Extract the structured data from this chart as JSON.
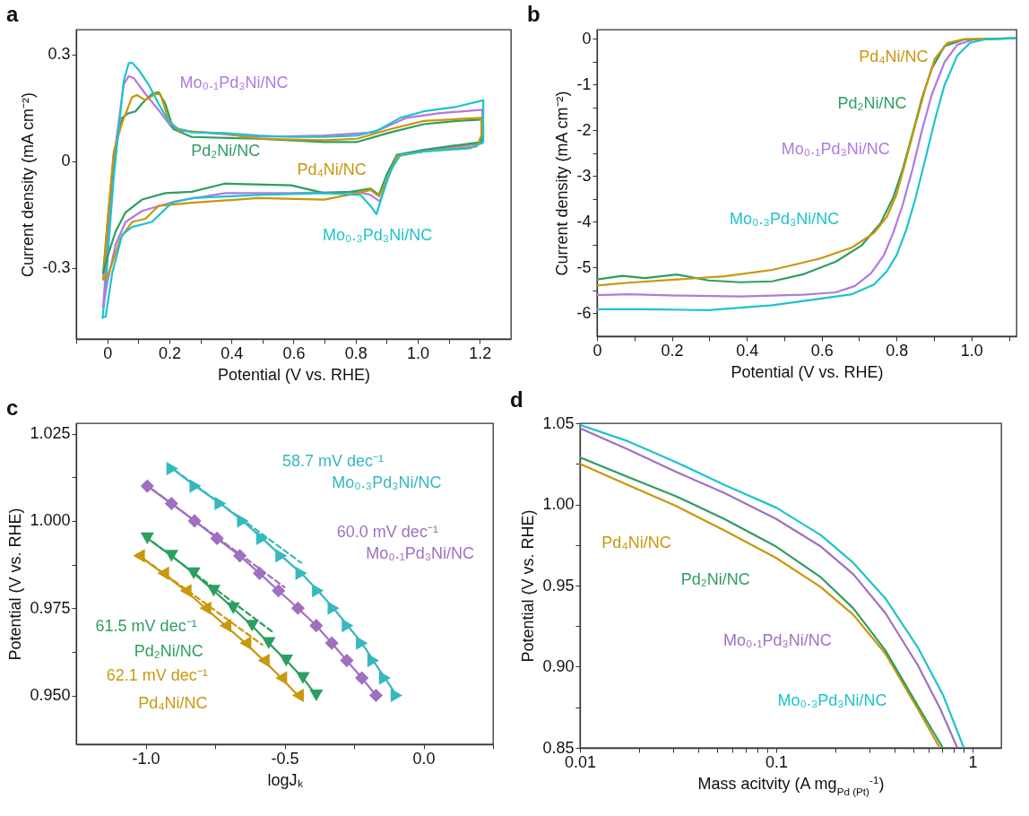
{
  "chart_data": [
    {
      "type": "line",
      "title": "a",
      "xlabel": "Potential (V vs. RHE)",
      "ylabel": "Current density  (mA cm⁻²)",
      "xlim": [
        -0.1,
        1.3
      ],
      "ylim": [
        -0.5,
        0.37
      ],
      "xticks": [
        0,
        {
          "value": 0.1,
          "label": null
        },
        0.2,
        {
          "value": 0.3,
          "label": null
        },
        0.4,
        {
          "value": 0.5,
          "label": null
        },
        0.6,
        {
          "value": 0.7,
          "label": null
        },
        0.8,
        {
          "value": 0.9,
          "label": null
        },
        {
          "value": 1,
          "label": "1.0"
        },
        {
          "value": 1.1,
          "label": null
        },
        1.2,
        {
          "value": -0.1,
          "label": null
        }
      ],
      "yticks": [
        -0.3,
        0,
        0.3
      ],
      "series": [
        {
          "name": "Mo₀.₁Pd₃Ni/NC",
          "color": "#b07ae0",
          "x": [
            -0.013,
            0.005,
            0.027,
            0.053,
            0.069,
            0.085,
            0.123,
            0.165,
            0.208,
            0.272,
            0.485,
            0.699,
            0.859,
            0.965,
            1.072,
            1.2,
            1.208
          ],
          "values": [
            -0.41,
            -0.18,
            0.045,
            0.216,
            0.239,
            0.234,
            0.189,
            0.144,
            0.095,
            0.083,
            0.068,
            0.072,
            0.081,
            0.122,
            0.135,
            0.144,
            0.144
          ]
        },
        {
          "name": "Pd₂Ni/NC",
          "color": "#2e9e60",
          "x": [
            -0.013,
            0,
            0.021,
            0.048,
            0.069,
            0.091,
            0.112,
            0.144,
            0.165,
            0.187,
            0.213,
            0.272,
            0.485,
            0.699,
            0.805,
            0.912,
            1.019,
            1.125,
            1.205
          ],
          "values": [
            -0.315,
            -0.18,
            0.018,
            0.122,
            0.135,
            0.14,
            0.162,
            0.189,
            0.194,
            0.162,
            0.09,
            0.068,
            0.063,
            0.054,
            0.054,
            0.081,
            0.104,
            0.113,
            0.117
          ]
        },
        {
          "name": "Pd₄Ni/NC",
          "color": "#c9960c",
          "x": [
            -0.013,
            0,
            0.021,
            0.048,
            0.08,
            0.096,
            0.123,
            0.155,
            0.171,
            0.197,
            0.229,
            0.379,
            0.485,
            0.699,
            0.805,
            0.912,
            1.019,
            1.205
          ],
          "values": [
            -0.333,
            -0.18,
            0.027,
            0.108,
            0.18,
            0.186,
            0.171,
            0.189,
            0.189,
            0.117,
            0.086,
            0.077,
            0.063,
            0.059,
            0.063,
            0.09,
            0.113,
            0.122
          ]
        },
        {
          "name": "Mo₀.₃Pd₃Ni/NC",
          "color": "#1ec3cc",
          "x": [
            -0.015,
            -0.005,
            0.005,
            0.021,
            0.037,
            0.053,
            0.069,
            0.08,
            0.101,
            0.133,
            0.165,
            0.197,
            0.229,
            0.272,
            0.379,
            0.485,
            0.592,
            0.699,
            0.805,
            0.869,
            0.944,
            1.019,
            1.125,
            1.211
          ],
          "values": [
            -0.44,
            -0.36,
            -0.225,
            -0.045,
            0.09,
            0.225,
            0.275,
            0.277,
            0.257,
            0.216,
            0.162,
            0.113,
            0.09,
            0.081,
            0.079,
            0.072,
            0.068,
            0.068,
            0.072,
            0.086,
            0.122,
            0.14,
            0.153,
            0.171
          ]
        },
        {
          "color": "#b07ae0",
          "x": [
            1.208,
            1.208,
            1.019,
            0.933,
            0.901,
            0.878,
            0.848,
            0.805,
            0.592,
            0.379,
            0.219,
            0.112,
            0.059,
            0.027,
            0,
            -0.013
          ],
          "values": [
            0.144,
            0.05,
            0.029,
            0.014,
            -0.054,
            -0.113,
            -0.095,
            -0.086,
            -0.09,
            -0.09,
            -0.113,
            -0.14,
            -0.171,
            -0.234,
            -0.342,
            -0.41
          ]
        },
        {
          "color": "#2e9e60",
          "x": [
            1.205,
            1.205,
            1.019,
            0.933,
            0.901,
            0.875,
            0.848,
            0.784,
            0.699,
            0.592,
            0.379,
            0.272,
            0.187,
            0.112,
            0.059,
            0.027,
            0,
            -0.013
          ],
          "values": [
            0.117,
            0.054,
            0.032,
            0.018,
            -0.036,
            -0.095,
            -0.077,
            -0.086,
            -0.09,
            -0.068,
            -0.063,
            -0.086,
            -0.09,
            -0.108,
            -0.144,
            -0.198,
            -0.27,
            -0.315
          ]
        },
        {
          "color": "#c9960c",
          "x": [
            1.205,
            1.205,
            1.189,
            1.019,
            0.933,
            0.901,
            0.875,
            0.848,
            0.805,
            0.699,
            0.485,
            0.272,
            0.165,
            0.123,
            0.08,
            0.043,
            0.005,
            -0.013
          ],
          "values": [
            0.122,
            0.072,
            0.041,
            0.027,
            0.014,
            -0.054,
            -0.099,
            -0.081,
            -0.09,
            -0.108,
            -0.104,
            -0.117,
            -0.126,
            -0.162,
            -0.171,
            -0.216,
            -0.315,
            -0.333
          ]
        },
        {
          "color": "#1ec3cc",
          "x": [
            1.211,
            1.211,
            1.168,
            1.019,
            0.944,
            0.912,
            0.885,
            0.867,
            0.848,
            0.816,
            0.699,
            0.485,
            0.272,
            0.208,
            0.144,
            0.08,
            0.048,
            0.016,
            -0.005,
            -0.015
          ],
          "values": [
            0.171,
            0.054,
            0.036,
            0.027,
            0.018,
            -0.027,
            -0.099,
            -0.149,
            -0.126,
            -0.095,
            -0.09,
            -0.095,
            -0.104,
            -0.117,
            -0.171,
            -0.185,
            -0.207,
            -0.315,
            -0.437,
            -0.44
          ]
        }
      ]
    },
    {
      "type": "line",
      "title": "b",
      "xlabel": "Potential (V vs. RHE)",
      "ylabel": "Current density (mA cm⁻²)",
      "xlim": [
        0,
        1.12
      ],
      "ylim": [
        -6.5,
        0.2
      ],
      "xticks": [
        0,
        {
          "value": 0.1,
          "label": null
        },
        0.2,
        {
          "value": 0.3,
          "label": null
        },
        0.4,
        {
          "value": 0.5,
          "label": null
        },
        0.6,
        {
          "value": 0.7,
          "label": null
        },
        0.8,
        {
          "value": 0.9,
          "label": null
        },
        {
          "value": 1,
          "label": "1.0"
        },
        {
          "value": 1.1,
          "label": null
        }
      ],
      "yticks": [
        -6,
        {
          "value": -5.5,
          "label": null
        },
        -5,
        {
          "value": -4.5,
          "label": null
        },
        -4,
        {
          "value": -3.5,
          "label": null
        },
        -3,
        {
          "value": -2.5,
          "label": null
        },
        -2,
        {
          "value": -1.5,
          "label": null
        },
        -1,
        {
          "value": -0.5,
          "label": null
        },
        0
      ],
      "series": [
        {
          "name": "Mo₀.₁Pd₃Ni/NC",
          "color": "#b07ae0",
          "x": [
            0,
            0.085,
            0.213,
            0.383,
            0.553,
            0.638,
            0.689,
            0.732,
            0.766,
            0.791,
            0.817,
            0.843,
            0.868,
            0.894,
            0.928,
            0.962,
            1.004,
            1.119
          ],
          "values": [
            -5.6,
            -5.58,
            -5.61,
            -5.63,
            -5.59,
            -5.54,
            -5.4,
            -5.12,
            -4.73,
            -4.24,
            -3.61,
            -2.83,
            -1.99,
            -1.22,
            -0.51,
            -0.13,
            -0.02,
            0.01
          ]
        },
        {
          "name": "Pd₂Ni/NC",
          "color": "#2e9e60",
          "x": [
            0,
            0.068,
            0.128,
            0.213,
            0.298,
            0.383,
            0.468,
            0.553,
            0.638,
            0.706,
            0.757,
            0.791,
            0.817,
            0.843,
            0.868,
            0.894,
            0.928,
            0.979,
            1.119
          ],
          "values": [
            -5.26,
            -5.18,
            -5.23,
            -5.15,
            -5.28,
            -5.32,
            -5.3,
            -5.14,
            -4.87,
            -4.52,
            -4.03,
            -3.47,
            -2.83,
            -2.06,
            -1.29,
            -0.65,
            -0.16,
            -0.02,
            0.01
          ]
        },
        {
          "name": "Pd₄Ni/NC",
          "color": "#c9960c",
          "x": [
            0,
            0.085,
            0.213,
            0.34,
            0.468,
            0.596,
            0.681,
            0.74,
            0.774,
            0.8,
            0.826,
            0.851,
            0.877,
            0.902,
            0.936,
            0.979,
            1.119
          ],
          "values": [
            -5.39,
            -5.33,
            -5.26,
            -5.19,
            -5.05,
            -4.8,
            -4.56,
            -4.24,
            -3.89,
            -3.4,
            -2.62,
            -1.85,
            -1.08,
            -0.44,
            -0.09,
            -0.01,
            0.01
          ]
        },
        {
          "name": "Mo₀.₃Pd₃Ni/NC",
          "color": "#1ec3cc",
          "x": [
            0,
            0.128,
            0.298,
            0.468,
            0.596,
            0.681,
            0.74,
            0.774,
            0.8,
            0.826,
            0.851,
            0.877,
            0.902,
            0.928,
            0.962,
            0.996,
            1.038,
            1.119
          ],
          "values": [
            -5.91,
            -5.91,
            -5.93,
            -5.82,
            -5.68,
            -5.58,
            -5.37,
            -5.08,
            -4.73,
            -4.17,
            -3.47,
            -2.62,
            -1.78,
            -1.01,
            -0.37,
            -0.09,
            -0.01,
            0.01
          ]
        }
      ]
    },
    {
      "type": "line",
      "title": "c",
      "xlabel": "logJₖ",
      "ylabel": "Potential (V vs. RHE)",
      "xlim": [
        -1.25,
        0.25
      ],
      "ylim": [
        0.936,
        1.028
      ],
      "xticks": [
        {
          "value": -1,
          "label": "-1.0"
        },
        {
          "value": -0.75,
          "label": null
        },
        -0.5,
        {
          "value": -0.25,
          "label": null
        },
        {
          "value": 0,
          "label": "0.0"
        },
        {
          "value": 0.25,
          "label": null
        }
      ],
      "yticks": [
        {
          "value": 0.95,
          "label": "0.950"
        },
        {
          "value": 0.9625,
          "label": null
        },
        0.975,
        {
          "value": 0.9875,
          "label": null
        },
        {
          "value": 1,
          "label": "1.000"
        },
        {
          "value": 1.0125,
          "label": null
        },
        1.025
      ],
      "annotations": [
        "58.7 mV dec⁻¹",
        "60.0 mV dec⁻¹",
        "61.5 mV dec⁻¹",
        "62.1 mV dec⁻¹"
      ],
      "series": [
        {
          "name": "Mo₀.₃Pd₃Ni/NC",
          "color": "#36b8bf",
          "marker": "triangle-right",
          "x": [
            -0.904,
            -0.821,
            -0.731,
            -0.65,
            -0.581,
            -0.512,
            -0.44,
            -0.38,
            -0.324,
            -0.273,
            -0.222,
            -0.181,
            -0.139,
            -0.097
          ],
          "values": [
            1.015,
            1.01,
            1.005,
            1,
            0.995,
            0.99,
            0.985,
            0.98,
            0.975,
            0.97,
            0.965,
            0.96,
            0.955,
            0.95
          ]
        },
        {
          "name": "Mo₀.₁Pd₃Ni/NC",
          "color": "#a070c0",
          "marker": "diamond",
          "x": [
            -0.994,
            -0.907,
            -0.824,
            -0.743,
            -0.661,
            -0.59,
            -0.522,
            -0.452,
            -0.386,
            -0.33,
            -0.276,
            -0.222,
            -0.171
          ],
          "values": [
            1.01,
            1.005,
            1,
            0.995,
            0.99,
            0.985,
            0.98,
            0.975,
            0.97,
            0.965,
            0.96,
            0.955,
            0.95
          ]
        },
        {
          "name": "Pd₂Ni/NC",
          "color": "#2e9e60",
          "marker": "triangle-down",
          "x": [
            -0.994,
            -0.907,
            -0.827,
            -0.755,
            -0.685,
            -0.617,
            -0.557,
            -0.494,
            -0.434,
            -0.386
          ],
          "values": [
            0.995,
            0.99,
            0.985,
            0.98,
            0.975,
            0.97,
            0.965,
            0.96,
            0.955,
            0.95
          ]
        },
        {
          "name": "Pd₄Ni/NC",
          "color": "#c8980e",
          "marker": "triangle-left",
          "x": [
            -1.024,
            -0.937,
            -0.856,
            -0.785,
            -0.713,
            -0.641,
            -0.575,
            -0.512,
            -0.452
          ],
          "values": [
            0.99,
            0.985,
            0.98,
            0.975,
            0.97,
            0.965,
            0.96,
            0.955,
            0.95
          ]
        },
        {
          "color": "#36b8bf",
          "line_style": "dashed",
          "x": [
            -0.92,
            -0.44
          ],
          "values": [
            1.016,
            0.988
          ]
        },
        {
          "color": "#a070c0",
          "line_style": "dashed",
          "x": [
            -1,
            -0.5
          ],
          "values": [
            1.0105,
            0.981
          ]
        },
        {
          "color": "#2e9e60",
          "line_style": "dashed",
          "x": [
            -1,
            -0.54
          ],
          "values": [
            0.9955,
            0.968
          ]
        },
        {
          "color": "#c8980e",
          "line_style": "dashed",
          "x": [
            -1.03,
            -0.58
          ],
          "values": [
            0.9905,
            0.9645
          ]
        }
      ]
    },
    {
      "type": "line",
      "title": "d",
      "xlabel": "Mass acitvity (A mg$_{Pd (Pt)}$$^{-1}$)",
      "ylabel": "Potential (V vs. RHE)",
      "log": "x",
      "xlim": [
        0.01,
        1.4
      ],
      "ylim": [
        0.85,
        1.05
      ],
      "xticks": [
        0.01,
        {
          "value": 0.02,
          "label": null
        },
        {
          "value": 0.03,
          "label": null
        },
        {
          "value": 0.04,
          "label": null
        },
        {
          "value": 0.05,
          "label": null
        },
        {
          "value": 0.06,
          "label": null
        },
        {
          "value": 0.07,
          "label": null
        },
        {
          "value": 0.08,
          "label": null
        },
        {
          "value": 0.09,
          "label": null
        },
        0.1,
        {
          "value": 0.2,
          "label": null
        },
        {
          "value": 0.3,
          "label": null
        },
        {
          "value": 0.4,
          "label": null
        },
        {
          "value": 0.5,
          "label": null
        },
        {
          "value": 0.6,
          "label": null
        },
        {
          "value": 0.7,
          "label": null
        },
        {
          "value": 0.8,
          "label": null
        },
        {
          "value": 0.9,
          "label": null
        },
        1
      ],
      "yticks": [
        0.85,
        {
          "value": 0.875,
          "label": null
        },
        {
          "value": 0.9,
          "label": "0.90"
        },
        {
          "value": 0.925,
          "label": null
        },
        0.95,
        {
          "value": 0.975,
          "label": null
        },
        {
          "value": 1,
          "label": "1.00"
        },
        {
          "value": 1.025,
          "label": null
        },
        1.05
      ],
      "series": [
        {
          "name": "Pd₄Ni/NC",
          "color": "#c9960c",
          "x": [
            0.01,
            0.0175,
            0.0309,
            0.0544,
            0.1,
            0.169,
            0.247,
            0.36,
            0.526,
            0.681
          ],
          "values": [
            1.025,
            1.012,
            0.999,
            0.984,
            0.967,
            0.949,
            0.932,
            0.908,
            0.874,
            0.85
          ]
        },
        {
          "name": "Pd₂Ni/NC",
          "color": "#2e9e60",
          "x": [
            0.01,
            0.0175,
            0.0309,
            0.0544,
            0.1,
            0.169,
            0.247,
            0.36,
            0.526,
            0.706
          ],
          "values": [
            1.029,
            1.017,
            1.005,
            0.991,
            0.974,
            0.955,
            0.936,
            0.91,
            0.876,
            0.85
          ]
        },
        {
          "name": "Mo₀.₁Pd₃Ni/NC",
          "color": "#a070c0",
          "x": [
            0.01,
            0.0175,
            0.0309,
            0.0544,
            0.1,
            0.169,
            0.247,
            0.36,
            0.526,
            0.685,
            0.837
          ],
          "values": [
            1.047,
            1.034,
            1.02,
            1.007,
            0.991,
            0.974,
            0.957,
            0.933,
            0.901,
            0.874,
            0.85
          ]
        },
        {
          "name": "Mo₀.₃Pd₃Ni/NC",
          "color": "#1ec3cc",
          "x": [
            0.01,
            0.0175,
            0.0309,
            0.0544,
            0.1,
            0.169,
            0.247,
            0.36,
            0.526,
            0.711,
            0.903
          ],
          "values": [
            1.049,
            1.039,
            1.026,
            1.012,
            0.998,
            0.981,
            0.964,
            0.942,
            0.912,
            0.882,
            0.85
          ]
        }
      ]
    }
  ]
}
